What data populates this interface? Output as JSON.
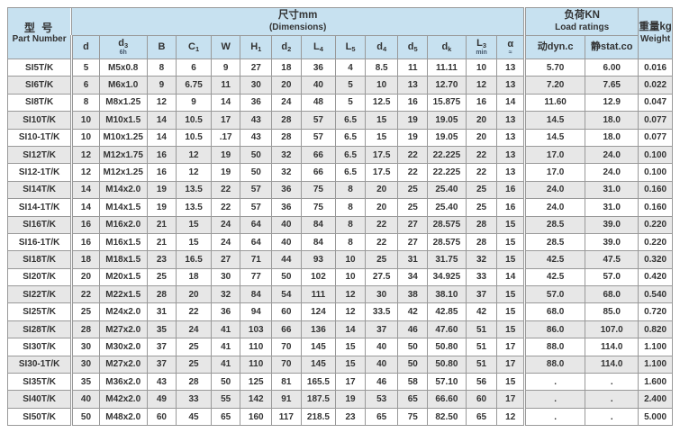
{
  "table": {
    "corner": {
      "zh": "型 号",
      "en": "Part Number"
    },
    "groups": {
      "dimensions": {
        "zh": "尺寸mm",
        "en": "(Dimensions)"
      },
      "load": {
        "zh": "负荷KN",
        "en": "Load ratings"
      },
      "weight": {
        "zh": "重量kg",
        "en": "Weight"
      }
    },
    "dim_columns": [
      {
        "base": "d",
        "sub": "",
        "under": ""
      },
      {
        "base": "d",
        "sub": "3",
        "under": "6h"
      },
      {
        "base": "B",
        "sub": "",
        "under": ""
      },
      {
        "base": "C",
        "sub": "1",
        "under": ""
      },
      {
        "base": "W",
        "sub": "",
        "under": ""
      },
      {
        "base": "H",
        "sub": "1",
        "under": ""
      },
      {
        "base": "d",
        "sub": "2",
        "under": ""
      },
      {
        "base": "L",
        "sub": "4",
        "under": ""
      },
      {
        "base": "L",
        "sub": "5",
        "under": ""
      },
      {
        "base": "d",
        "sub": "4",
        "under": ""
      },
      {
        "base": "d",
        "sub": "5",
        "under": ""
      },
      {
        "base": "d",
        "sub": "k",
        "under": ""
      },
      {
        "base": "L",
        "sub": "3",
        "under": "min"
      },
      {
        "base": "α",
        "sub": "",
        "under": "≈"
      }
    ],
    "load_columns": [
      "动dyn.c",
      "静stat.co"
    ],
    "column_keys": [
      "part",
      "d",
      "d3",
      "B",
      "C1",
      "W",
      "H1",
      "d2",
      "L4",
      "L5",
      "d4",
      "d5",
      "dk",
      "L3",
      "alpha",
      "dyn_c",
      "stat_co",
      "weight"
    ],
    "rows": [
      [
        "SI5T/K",
        "5",
        "M5x0.8",
        "8",
        "6",
        "9",
        "27",
        "18",
        "36",
        "4",
        "8.5",
        "11",
        "11.11",
        "10",
        "13",
        "5.70",
        "6.00",
        "0.016"
      ],
      [
        "SI6T/K",
        "6",
        "M6x1.0",
        "9",
        "6.75",
        "11",
        "30",
        "20",
        "40",
        "5",
        "10",
        "13",
        "12.70",
        "12",
        "13",
        "7.20",
        "7.65",
        "0.022"
      ],
      [
        "SI8T/K",
        "8",
        "M8x1.25",
        "12",
        "9",
        "14",
        "36",
        "24",
        "48",
        "5",
        "12.5",
        "16",
        "15.875",
        "16",
        "14",
        "11.60",
        "12.9",
        "0.047"
      ],
      [
        "SI10T/K",
        "10",
        "M10x1.5",
        "14",
        "10.5",
        "17",
        "43",
        "28",
        "57",
        "6.5",
        "15",
        "19",
        "19.05",
        "20",
        "13",
        "14.5",
        "18.0",
        "0.077"
      ],
      [
        "SI10-1T/K",
        "10",
        "M10x1.25",
        "14",
        "10.5",
        ".17",
        "43",
        "28",
        "57",
        "6.5",
        "15",
        "19",
        "19.05",
        "20",
        "13",
        "14.5",
        "18.0",
        "0.077"
      ],
      [
        "SI12T/K",
        "12",
        "M12x1.75",
        "16",
        "12",
        "19",
        "50",
        "32",
        "66",
        "6.5",
        "17.5",
        "22",
        "22.225",
        "22",
        "13",
        "17.0",
        "24.0",
        "0.100"
      ],
      [
        "SI12-1T/K",
        "12",
        "M12x1.25",
        "16",
        "12",
        "19",
        "50",
        "32",
        "66",
        "6.5",
        "17.5",
        "22",
        "22.225",
        "22",
        "13",
        "17.0",
        "24.0",
        "0.100"
      ],
      [
        "SI14T/K",
        "14",
        "M14x2.0",
        "19",
        "13.5",
        "22",
        "57",
        "36",
        "75",
        "8",
        "20",
        "25",
        "25.40",
        "25",
        "16",
        "24.0",
        "31.0",
        "0.160"
      ],
      [
        "SI14-1T/K",
        "14",
        "M14x1.5",
        "19",
        "13.5",
        "22",
        "57",
        "36",
        "75",
        "8",
        "20",
        "25",
        "25.40",
        "25",
        "16",
        "24.0",
        "31.0",
        "0.160"
      ],
      [
        "SI16T/K",
        "16",
        "M16x2.0",
        "21",
        "15",
        "24",
        "64",
        "40",
        "84",
        "8",
        "22",
        "27",
        "28.575",
        "28",
        "15",
        "28.5",
        "39.0",
        "0.220"
      ],
      [
        "SI16-1T/K",
        "16",
        "M16x1.5",
        "21",
        "15",
        "24",
        "64",
        "40",
        "84",
        "8",
        "22",
        "27",
        "28.575",
        "28",
        "15",
        "28.5",
        "39.0",
        "0.220"
      ],
      [
        "SI18T/K",
        "18",
        "M18x1.5",
        "23",
        "16.5",
        "27",
        "71",
        "44",
        "93",
        "10",
        "25",
        "31",
        "31.75",
        "32",
        "15",
        "42.5",
        "47.5",
        "0.320"
      ],
      [
        "SI20T/K",
        "20",
        "M20x1.5",
        "25",
        "18",
        "30",
        "77",
        "50",
        "102",
        "10",
        "27.5",
        "34",
        "34.925",
        "33",
        "14",
        "42.5",
        "57.0",
        "0.420"
      ],
      [
        "SI22T/K",
        "22",
        "M22x1.5",
        "28",
        "20",
        "32",
        "84",
        "54",
        "111",
        "12",
        "30",
        "38",
        "38.10",
        "37",
        "15",
        "57.0",
        "68.0",
        "0.540"
      ],
      [
        "SI25T/K",
        "25",
        "M24x2.0",
        "31",
        "22",
        "36",
        "94",
        "60",
        "124",
        "12",
        "33.5",
        "42",
        "42.85",
        "42",
        "15",
        "68.0",
        "85.0",
        "0.720"
      ],
      [
        "SI28T/K",
        "28",
        "M27x2.0",
        "35",
        "24",
        "41",
        "103",
        "66",
        "136",
        "14",
        "37",
        "46",
        "47.60",
        "51",
        "15",
        "86.0",
        "107.0",
        "0.820"
      ],
      [
        "SI30T/K",
        "30",
        "M30x2.0",
        "37",
        "25",
        "41",
        "110",
        "70",
        "145",
        "15",
        "40",
        "50",
        "50.80",
        "51",
        "17",
        "88.0",
        "114.0",
        "1.100"
      ],
      [
        "SI30-1T/K",
        "30",
        "M27x2.0",
        "37",
        "25",
        "41",
        "110",
        "70",
        "145",
        "15",
        "40",
        "50",
        "50.80",
        "51",
        "17",
        "88.0",
        "114.0",
        "1.100"
      ],
      [
        "SI35T/K",
        "35",
        "M36x2.0",
        "43",
        "28",
        "50",
        "125",
        "81",
        "165.5",
        "17",
        "46",
        "58",
        "57.10",
        "56",
        "15",
        ".",
        ".",
        "1.600"
      ],
      [
        "SI40T/K",
        "40",
        "M42x2.0",
        "49",
        "33",
        "55",
        "142",
        "91",
        "187.5",
        "19",
        "53",
        "65",
        "66.60",
        "60",
        "17",
        ".",
        ".",
        "2.400"
      ],
      [
        "SI50T/K",
        "50",
        "M48x2.0",
        "60",
        "45",
        "65",
        "160",
        "117",
        "218.5",
        "23",
        "65",
        "75",
        "82.50",
        "65",
        "12",
        ".",
        ".",
        "5.000"
      ]
    ]
  },
  "colors": {
    "header_bg": "#c7e1f0",
    "row_stripe": "#e7e7e7",
    "row_white": "#ffffff",
    "border": "#999999",
    "text": "#333333"
  }
}
